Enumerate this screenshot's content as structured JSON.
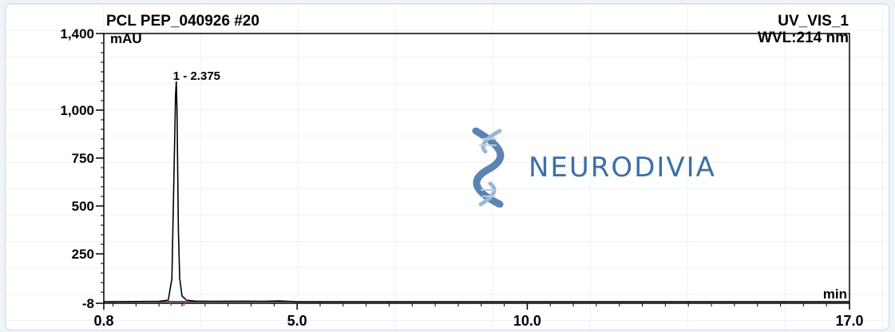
{
  "header": {
    "sample_name": "PCL PEP_040926 #20",
    "channel": "UV_VIS_1",
    "wavelength": "WVL:214 nm"
  },
  "watermark": {
    "brand": "NEURODIVIA",
    "icon": "dna-helix-icon"
  },
  "colors": {
    "trace": "#000000",
    "baseline_marker": "#cc3333",
    "integration": "#3333cc",
    "logo_blue": "#3d6fa6"
  },
  "chart_data": {
    "type": "line",
    "title": "PCL PEP_040926 #20",
    "xlabel": "min",
    "ylabel": "mAU",
    "xlim": [
      0.8,
      17.0
    ],
    "ylim": [
      -8,
      1400
    ],
    "x_ticks": [
      "0.8",
      "5.0",
      "10.0",
      "17.0"
    ],
    "x_tick_values": [
      0.8,
      5.0,
      10.0,
      17.0
    ],
    "y_ticks": [
      "-8",
      "250",
      "500",
      "750",
      "1,000",
      "1,400"
    ],
    "y_tick_values": [
      -8,
      250,
      500,
      750,
      1000,
      1400
    ],
    "grid": false,
    "series": [
      {
        "x": [
          0.8,
          1.5,
          2.0,
          2.2,
          2.28,
          2.32,
          2.36,
          2.375,
          2.39,
          2.42,
          2.45,
          2.5,
          2.6,
          2.8,
          3.2,
          3.8,
          4.3,
          4.6,
          5.0,
          8.0,
          12.0,
          17.0
        ],
        "y": [
          0,
          1,
          2,
          8,
          120,
          600,
          1080,
          1150,
          1000,
          380,
          120,
          30,
          8,
          3,
          2,
          3,
          2,
          4,
          0,
          0,
          0,
          0
        ]
      }
    ],
    "annotations": [
      {
        "x": 2.375,
        "y": 1150,
        "text": "1 - 2.375"
      }
    ]
  }
}
